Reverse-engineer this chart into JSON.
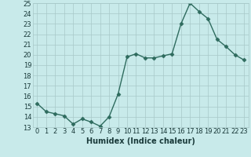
{
  "x": [
    0,
    1,
    2,
    3,
    4,
    5,
    6,
    7,
    8,
    9,
    10,
    11,
    12,
    13,
    14,
    15,
    16,
    17,
    18,
    19,
    20,
    21,
    22,
    23
  ],
  "y": [
    15.3,
    14.5,
    14.3,
    14.1,
    13.3,
    13.8,
    13.5,
    13.1,
    14.0,
    16.2,
    19.8,
    20.1,
    19.7,
    19.7,
    19.9,
    20.1,
    23.0,
    25.0,
    24.2,
    23.5,
    21.5,
    20.8,
    20.0,
    19.5
  ],
  "line_color": "#2e6b5e",
  "marker": "D",
  "marker_size": 2.5,
  "bg_color": "#c8eaea",
  "grid_color": "#a8c8c8",
  "xlabel": "Humidex (Indice chaleur)",
  "ylim": [
    13,
    25
  ],
  "xlim": [
    -0.5,
    23.5
  ],
  "yticks": [
    13,
    14,
    15,
    16,
    17,
    18,
    19,
    20,
    21,
    22,
    23,
    24,
    25
  ],
  "xticks": [
    0,
    1,
    2,
    3,
    4,
    5,
    6,
    7,
    8,
    9,
    10,
    11,
    12,
    13,
    14,
    15,
    16,
    17,
    18,
    19,
    20,
    21,
    22,
    23
  ],
  "xlabel_fontsize": 7,
  "tick_fontsize": 6,
  "linewidth": 1.0
}
